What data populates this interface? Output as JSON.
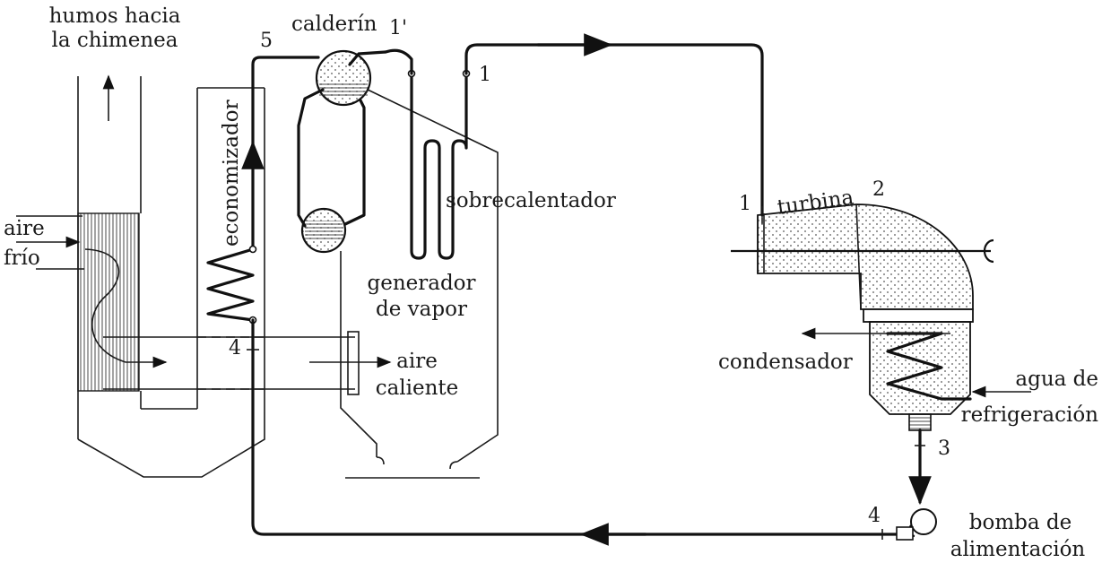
{
  "labels": {
    "humos_line1": "humos hacia",
    "humos_line2": "la chimenea",
    "calderin": "calderín",
    "economizador": "economizador",
    "sobrecalentador": "sobrecalentador",
    "generador_line1": "generador",
    "generador_line2": "de vapor",
    "aire_frio_line1": "aire",
    "aire_frio_line2": "frío",
    "aire_caliente_line1": "aire",
    "aire_caliente_line2": "caliente",
    "turbina": "turbina",
    "condensador": "condensador",
    "agua_line1": "agua de",
    "agua_line2": "refrigeración",
    "bomba_line1": "bomba de",
    "bomba_line2": "alimentación"
  },
  "state_points": {
    "p1_boiler": "1",
    "p1_prime": "1'",
    "p5": "5",
    "p4_boiler": "4",
    "p1_turbine": "1",
    "p2": "2",
    "p3": "3",
    "p4_pump": "4"
  },
  "colors": {
    "line": "#111111",
    "dots": "#555555"
  }
}
